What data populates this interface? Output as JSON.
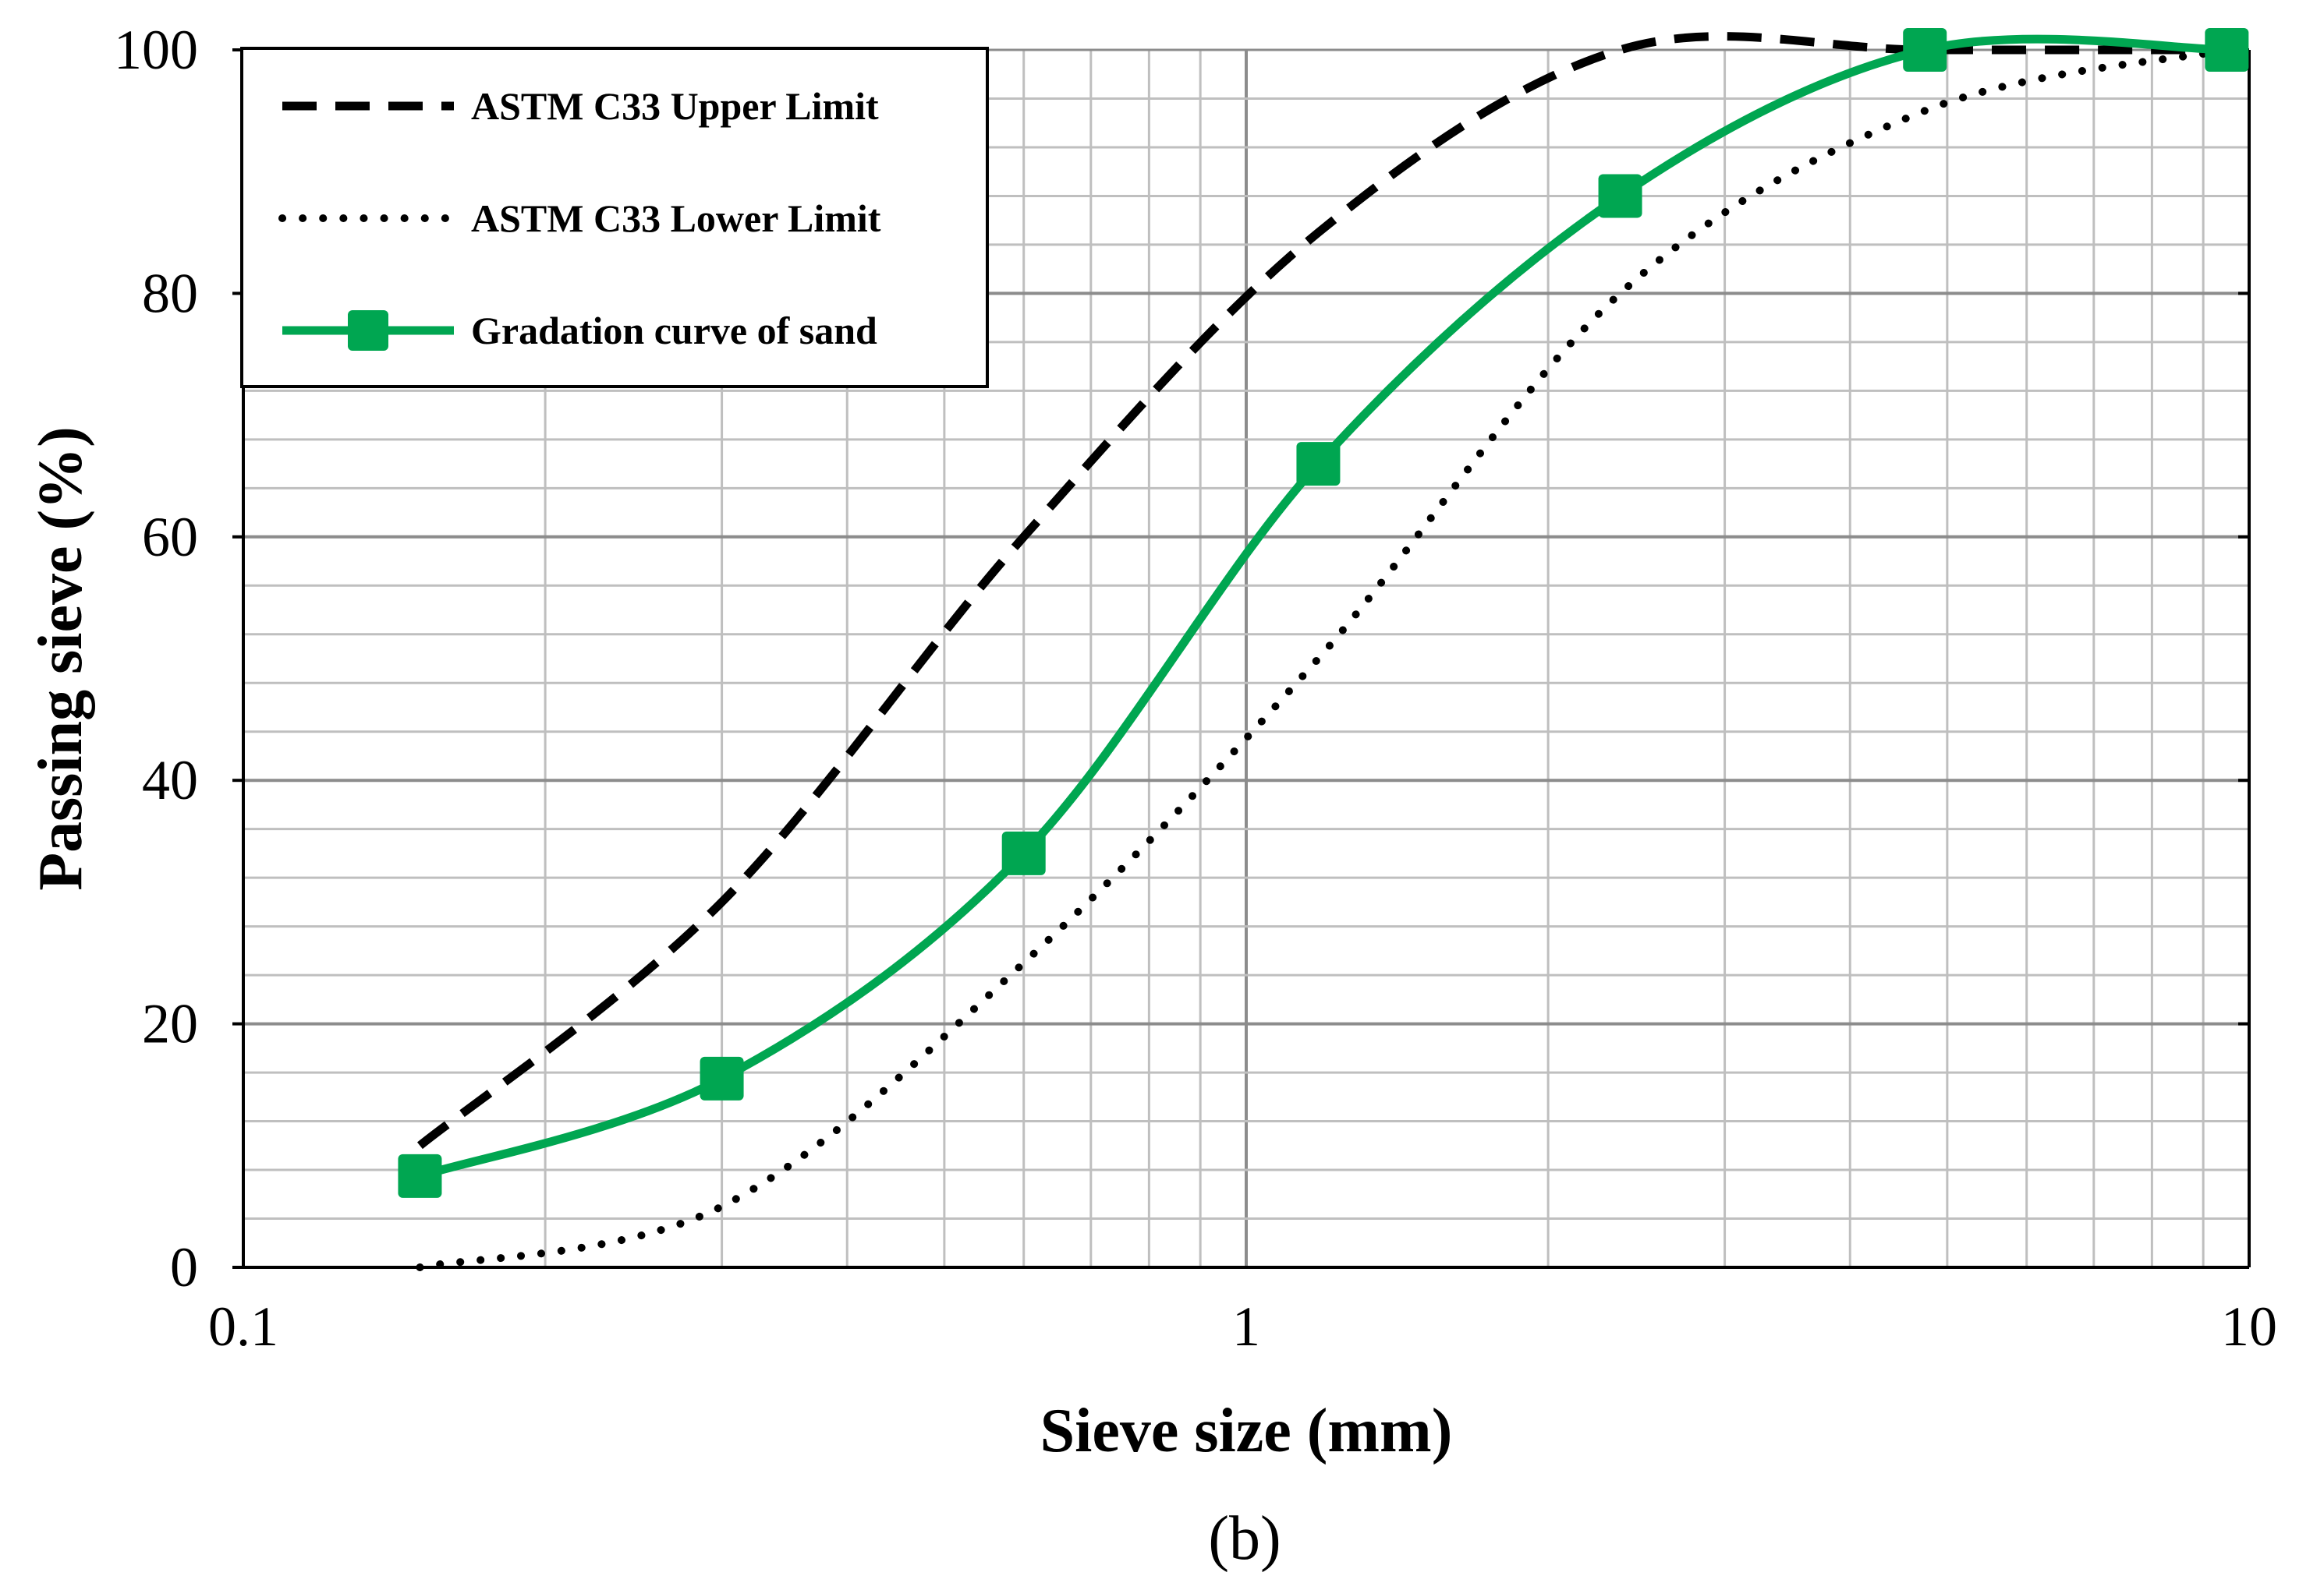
{
  "chart_data": {
    "type": "line",
    "xlabel": "Sieve size (mm)",
    "ylabel": "Passing sieve (%)",
    "x_scale": "log",
    "xlim": [
      0.1,
      10
    ],
    "ylim": [
      0,
      100
    ],
    "x_ticks": [
      "0.1",
      "1",
      "10"
    ],
    "y_ticks": [
      "0",
      "20",
      "40",
      "60",
      "80",
      "100"
    ],
    "y_tick_values": [
      0,
      20,
      40,
      60,
      80,
      100
    ],
    "grid": true,
    "legend_position": "top-left",
    "caption": "(b)",
    "series": [
      {
        "name": "ASTM C33 Upper Limit",
        "style": "dashed",
        "color": "#000000",
        "x": [
          0.15,
          0.3,
          0.6,
          1.18,
          2.36,
          4.75,
          9.5
        ],
        "y": [
          10,
          30,
          60,
          85,
          100,
          100,
          100
        ]
      },
      {
        "name": "ASTM C33 Lower Limit",
        "style": "dotted",
        "color": "#000000",
        "x": [
          0.15,
          0.3,
          0.6,
          1.18,
          2.36,
          4.75,
          9.5
        ],
        "y": [
          0,
          5,
          25,
          50,
          80,
          95,
          100
        ]
      },
      {
        "name": "Gradation curve of sand",
        "style": "solid-square-markers",
        "color": "#00a651",
        "x": [
          0.15,
          0.3,
          0.6,
          1.18,
          2.36,
          4.75,
          9.5
        ],
        "y": [
          7.5,
          15.5,
          34,
          66,
          88,
          100,
          100
        ]
      }
    ]
  }
}
